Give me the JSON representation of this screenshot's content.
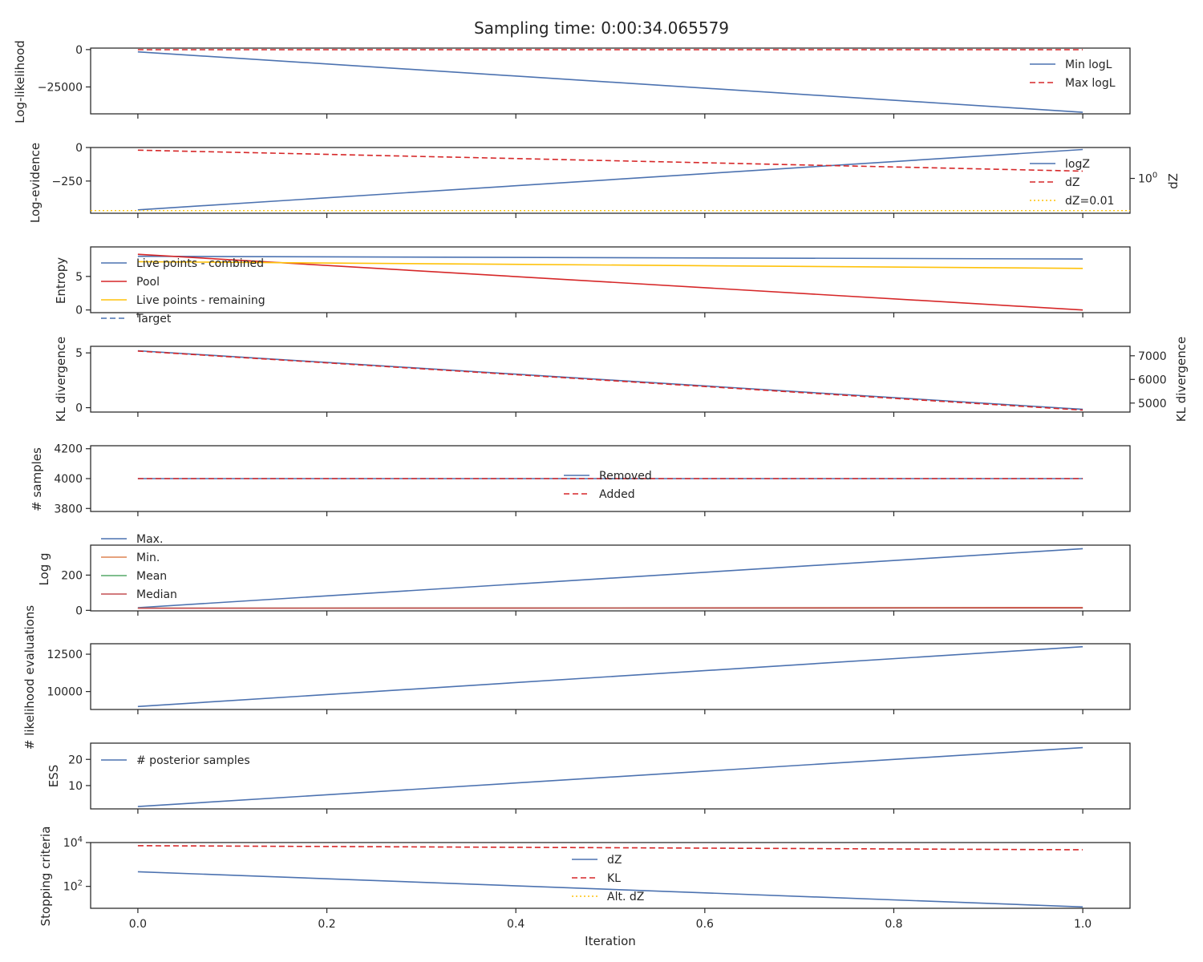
{
  "title": "Sampling time: 0:00:34.065579",
  "xlabel": "Iteration",
  "x_ticks": [
    "0.0",
    "0.2",
    "0.4",
    "0.6",
    "0.8",
    "1.0"
  ],
  "x_tick_values": [
    0.0,
    0.2,
    0.4,
    0.6,
    0.8,
    1.0
  ],
  "x_range": [
    -0.05,
    1.05
  ],
  "colors": {
    "blue": "#4c72b0",
    "red": "#d62728",
    "orange": "#dd8452",
    "green": "#55a868",
    "crimson": "#c44e52",
    "gold": "#ffc20a",
    "axis": "#262626"
  },
  "chart_data": [
    {
      "type": "line",
      "ylabel": "Log-likelihood",
      "ylim": [
        -43000,
        1000
      ],
      "y_ticks": [
        {
          "value": 0,
          "label": "0"
        },
        {
          "value": -25000,
          "label": "−25000"
        }
      ],
      "legend_position": "right",
      "series": [
        {
          "name": "Min logL",
          "x": [
            0,
            1
          ],
          "y": [
            -1500,
            -42000
          ],
          "color": "blue",
          "style": "solid"
        },
        {
          "name": "Max logL",
          "x": [
            0,
            1
          ],
          "y": [
            -100,
            -100
          ],
          "color": "red",
          "style": "dashed"
        }
      ]
    },
    {
      "type": "line",
      "ylabel": "Log-evidence",
      "ylim": [
        -490,
        0
      ],
      "y_ticks": [
        {
          "value": 0,
          "label": "0"
        },
        {
          "value": -250,
          "label": "−250"
        }
      ],
      "y2label": "dZ",
      "y2_ticks": [
        {
          "value": 0.53,
          "label": "10",
          "sup": "0"
        }
      ],
      "legend_position": "right",
      "series": [
        {
          "name": "logZ",
          "x": [
            0,
            1
          ],
          "y": [
            -465,
            -15
          ],
          "color": "blue",
          "style": "solid"
        },
        {
          "name": "dZ",
          "x": [
            0,
            1
          ],
          "y": [
            0.96,
            0.64
          ],
          "color": "red",
          "style": "dashed",
          "axis": "right"
        },
        {
          "name": "dZ=0.01",
          "x": [
            -0.05,
            1.05
          ],
          "y": [
            0.04,
            0.04
          ],
          "color": "gold",
          "style": "dotted",
          "axis": "right"
        }
      ]
    },
    {
      "type": "line",
      "ylabel": "Entropy",
      "ylim": [
        -0.4,
        9.4
      ],
      "y_ticks": [
        {
          "value": 0,
          "label": "0"
        },
        {
          "value": 5,
          "label": "5"
        }
      ],
      "legend_position": "left",
      "series": [
        {
          "name": "Live points - combined",
          "x": [
            0,
            1
          ],
          "y": [
            8.0,
            7.6
          ],
          "color": "blue",
          "style": "solid"
        },
        {
          "name": "Pool",
          "x": [
            0,
            1
          ],
          "y": [
            8.3,
            0.0
          ],
          "color": "red",
          "style": "solid"
        },
        {
          "name": "Live points - remaining",
          "x": [
            0,
            1
          ],
          "y": [
            7.2,
            6.2
          ],
          "color": "gold",
          "style": "solid"
        },
        {
          "name": "Target",
          "x": [],
          "y": [],
          "color": "blue",
          "style": "dashed"
        }
      ]
    },
    {
      "type": "line",
      "ylabel": "KL divergence",
      "ylim": [
        -0.4,
        5.6
      ],
      "y_ticks": [
        {
          "value": 0,
          "label": "0"
        },
        {
          "value": 5,
          "label": "5"
        }
      ],
      "y2label": "KL divergence",
      "y2lim": [
        4620,
        7400
      ],
      "y2_ticks": [
        {
          "value": 5000,
          "label": "5000"
        },
        {
          "value": 6000,
          "label": "6000"
        },
        {
          "value": 7000,
          "label": "7000"
        }
      ],
      "series": [
        {
          "name": "",
          "x": [
            0,
            1
          ],
          "y": [
            5.2,
            -0.15
          ],
          "color": "blue",
          "style": "solid"
        },
        {
          "name": "",
          "x": [
            0,
            1
          ],
          "y": [
            7200,
            4700
          ],
          "color": "red",
          "style": "dashed",
          "axis": "right"
        }
      ]
    },
    {
      "type": "line",
      "ylabel": "# samples",
      "ylim": [
        3780,
        4220
      ],
      "y_ticks": [
        {
          "value": 3800,
          "label": "3800"
        },
        {
          "value": 4000,
          "label": "4000"
        },
        {
          "value": 4200,
          "label": "4200"
        }
      ],
      "legend_position": "center",
      "series": [
        {
          "name": "Removed",
          "x": [
            0,
            1
          ],
          "y": [
            4000,
            4000
          ],
          "color": "blue",
          "style": "solid"
        },
        {
          "name": "Added",
          "x": [
            0,
            1
          ],
          "y": [
            4000,
            4000
          ],
          "color": "red",
          "style": "dashed"
        }
      ]
    },
    {
      "type": "line",
      "ylabel": "Log g",
      "ylim": [
        -3,
        370
      ],
      "y_ticks": [
        {
          "value": 0,
          "label": "0"
        },
        {
          "value": 200,
          "label": "200"
        }
      ],
      "legend_position": "left",
      "series": [
        {
          "name": "Max.",
          "x": [
            0,
            1
          ],
          "y": [
            15,
            350
          ],
          "color": "blue",
          "style": "solid"
        },
        {
          "name": "Min.",
          "x": [
            0,
            1
          ],
          "y": [
            12,
            16
          ],
          "color": "orange",
          "style": "solid"
        },
        {
          "name": "Mean",
          "x": [
            0,
            1
          ],
          "y": [
            12,
            14
          ],
          "color": "green",
          "style": "solid"
        },
        {
          "name": "Median",
          "x": [
            0,
            1
          ],
          "y": [
            12,
            14
          ],
          "color": "crimson",
          "style": "solid"
        }
      ]
    },
    {
      "type": "line",
      "ylabel": "# likelihood evaluations",
      "ylim": [
        8800,
        13200
      ],
      "y_ticks": [
        {
          "value": 10000,
          "label": "10000"
        },
        {
          "value": 12500,
          "label": "12500"
        }
      ],
      "series": [
        {
          "name": "",
          "x": [
            0,
            1
          ],
          "y": [
            9000,
            13000
          ],
          "color": "blue",
          "style": "solid"
        }
      ]
    },
    {
      "type": "line",
      "ylabel": "ESS",
      "ylim": [
        1.1,
        26.2
      ],
      "y_ticks": [
        {
          "value": 10,
          "label": "10"
        },
        {
          "value": 20,
          "label": "20"
        }
      ],
      "legend_position": "left",
      "series": [
        {
          "name": "# posterior samples",
          "x": [
            0,
            1
          ],
          "y": [
            2.0,
            24.5
          ],
          "color": "blue",
          "style": "solid"
        }
      ]
    },
    {
      "type": "line",
      "ylabel": "Stopping criteria",
      "yscale": "log",
      "ylim": [
        10,
        10000
      ],
      "y_ticks": [
        {
          "value": 100,
          "label": "10",
          "sup": "2"
        },
        {
          "value": 10000,
          "label": "10",
          "sup": "4"
        }
      ],
      "legend_position": "center",
      "series": [
        {
          "name": "dZ",
          "x": [
            0,
            1
          ],
          "y": [
            465,
            11.5
          ],
          "color": "blue",
          "style": "solid"
        },
        {
          "name": "KL",
          "x": [
            0,
            1
          ],
          "y": [
            7200,
            4700
          ],
          "color": "red",
          "style": "dashed"
        },
        {
          "name": "Alt. dZ",
          "x": [],
          "y": [],
          "color": "gold",
          "style": "dotted"
        }
      ]
    }
  ]
}
